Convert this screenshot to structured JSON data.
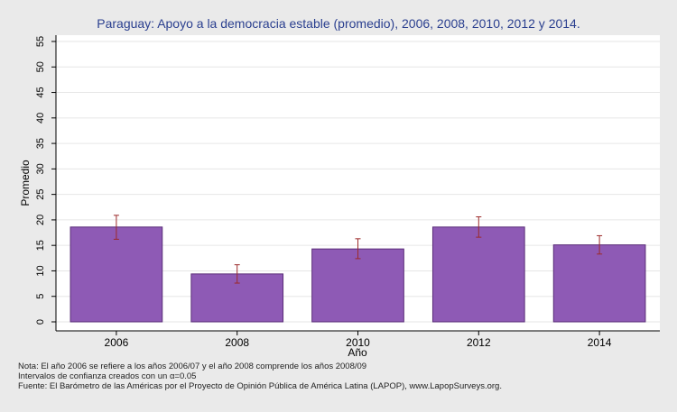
{
  "chart_data": {
    "type": "bar",
    "title": "Paraguay: Apoyo a la democracia estable (promedio), 2006, 2008, 2010, 2012 y 2014.",
    "xlabel": "Año",
    "ylabel": "Promedio",
    "categories": [
      "2006",
      "2008",
      "2010",
      "2012",
      "2014"
    ],
    "values": [
      18.6,
      9.4,
      14.3,
      18.6,
      15.1
    ],
    "ci_low": [
      16.2,
      7.6,
      12.4,
      16.6,
      13.3
    ],
    "ci_high": [
      20.9,
      11.2,
      16.3,
      20.6,
      16.9
    ],
    "ylim": [
      0,
      55
    ],
    "yticks": [
      0,
      5,
      10,
      15,
      20,
      25,
      30,
      35,
      40,
      45,
      50,
      55
    ],
    "grid": true,
    "legend": "none",
    "colors": {
      "bar_fill": "#8e5ab5",
      "bar_stroke": "#5a2d78",
      "error_bar": "#9c2a2a",
      "plot_bg": "#ffffff",
      "page_bg": "#eaeaea",
      "title": "#2a3f8f"
    }
  },
  "notes": {
    "line1": "Nota: El año 2006 se refiere a los años 2006/07 y el año 2008 comprende los años 2008/09",
    "line2": "Intervalos de confianza creados con un α=0.05",
    "line3": "Fuente: El Barómetro de las Américas por el Proyecto de Opinión Pública de América Latina (LAPOP), www.LapopSurveys.org."
  }
}
